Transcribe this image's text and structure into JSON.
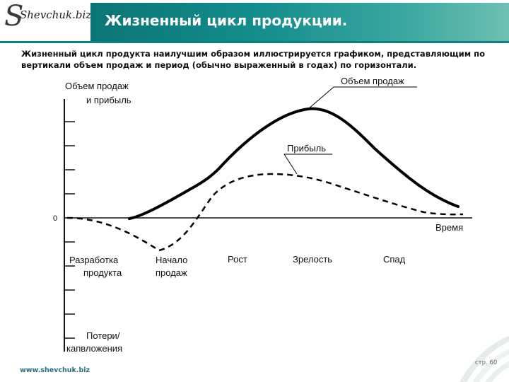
{
  "header": {
    "title": "Жизненный цикл продукции.",
    "logo_text": "Shevchuk.biz"
  },
  "intro": "Жизненный цикл продукта наилучшим образом иллюстрируется графиком, представляющим по вертикали объем продаж и период (обычно выраженный в годах) по горизонтали.",
  "diagram": {
    "y_axis_top_label": [
      "Объем продаж",
      "и прибыль"
    ],
    "y_axis_bottom_label": [
      "Потери/",
      "капвложения"
    ],
    "zero_label": "0",
    "x_axis_label": "Время",
    "sales_curve_label": "Объем продаж",
    "profit_curve_label": "Прибыль",
    "stages": [
      {
        "name": "stage-development",
        "lines": [
          "Разработка",
          "продукта"
        ]
      },
      {
        "name": "stage-introduction",
        "lines": [
          "Начало",
          "продаж"
        ]
      },
      {
        "name": "stage-growth",
        "lines": [
          "Рост"
        ]
      },
      {
        "name": "stage-maturity",
        "lines": [
          "Зрелость"
        ]
      },
      {
        "name": "stage-decline",
        "lines": [
          "Спад"
        ]
      }
    ]
  },
  "footer": {
    "url": "www.shevchuk.biz",
    "page": "стр. 60"
  },
  "colors": {
    "header_band": "#138d8d",
    "footer_url": "#2a6f7f"
  }
}
